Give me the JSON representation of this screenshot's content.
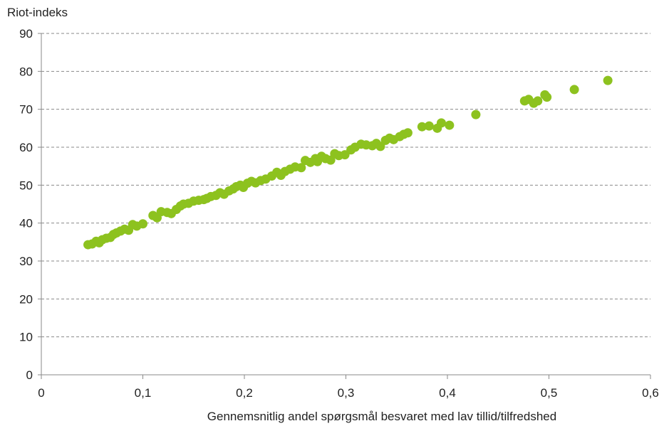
{
  "chart_data": {
    "type": "scatter",
    "ylabel": "Riot-indeks",
    "xlabel": "Gennemsnitlig andel spørgsmål besvaret med lav tillid/tilfredshed",
    "xlim": [
      0,
      0.6
    ],
    "ylim": [
      0,
      90
    ],
    "x_ticks": [
      "0",
      "0,1",
      "0,2",
      "0,3",
      "0,4",
      "0,5",
      "0,6"
    ],
    "y_ticks": [
      "0",
      "10",
      "20",
      "30",
      "40",
      "50",
      "60",
      "70",
      "80",
      "90"
    ],
    "grid": "horizontal-dashed",
    "point_color": "#8dc21f",
    "series": [
      {
        "points": [
          [
            0.046,
            34.3
          ],
          [
            0.05,
            34.5
          ],
          [
            0.054,
            35.2
          ],
          [
            0.057,
            34.8
          ],
          [
            0.06,
            35.6
          ],
          [
            0.064,
            36.0
          ],
          [
            0.068,
            36.2
          ],
          [
            0.071,
            37.0
          ],
          [
            0.074,
            37.4
          ],
          [
            0.078,
            37.9
          ],
          [
            0.082,
            38.4
          ],
          [
            0.086,
            38.1
          ],
          [
            0.09,
            39.6
          ],
          [
            0.094,
            39.2
          ],
          [
            0.1,
            39.8
          ],
          [
            0.11,
            42.0
          ],
          [
            0.114,
            41.4
          ],
          [
            0.118,
            43.0
          ],
          [
            0.124,
            42.8
          ],
          [
            0.128,
            42.5
          ],
          [
            0.133,
            43.6
          ],
          [
            0.137,
            44.5
          ],
          [
            0.14,
            45.0
          ],
          [
            0.145,
            45.2
          ],
          [
            0.15,
            45.8
          ],
          [
            0.155,
            46.0
          ],
          [
            0.16,
            46.2
          ],
          [
            0.163,
            46.5
          ],
          [
            0.167,
            47.0
          ],
          [
            0.172,
            47.3
          ],
          [
            0.176,
            48.0
          ],
          [
            0.18,
            47.6
          ],
          [
            0.185,
            48.5
          ],
          [
            0.189,
            49.0
          ],
          [
            0.192,
            49.6
          ],
          [
            0.196,
            50.0
          ],
          [
            0.199,
            49.4
          ],
          [
            0.203,
            50.5
          ],
          [
            0.207,
            51.0
          ],
          [
            0.211,
            50.6
          ],
          [
            0.216,
            51.2
          ],
          [
            0.221,
            51.6
          ],
          [
            0.227,
            52.4
          ],
          [
            0.232,
            53.4
          ],
          [
            0.236,
            52.6
          ],
          [
            0.24,
            53.6
          ],
          [
            0.245,
            54.2
          ],
          [
            0.25,
            54.8
          ],
          [
            0.256,
            54.6
          ],
          [
            0.26,
            56.5
          ],
          [
            0.265,
            56.0
          ],
          [
            0.27,
            57.0
          ],
          [
            0.272,
            56.2
          ],
          [
            0.276,
            57.6
          ],
          [
            0.28,
            57.0
          ],
          [
            0.285,
            56.6
          ],
          [
            0.289,
            58.3
          ],
          [
            0.293,
            57.8
          ],
          [
            0.299,
            58.0
          ],
          [
            0.305,
            59.3
          ],
          [
            0.309,
            60.0
          ],
          [
            0.315,
            60.8
          ],
          [
            0.32,
            60.6
          ],
          [
            0.326,
            60.4
          ],
          [
            0.33,
            61.0
          ],
          [
            0.334,
            60.2
          ],
          [
            0.339,
            61.8
          ],
          [
            0.343,
            62.4
          ],
          [
            0.347,
            62.0
          ],
          [
            0.353,
            62.8
          ],
          [
            0.357,
            63.4
          ],
          [
            0.361,
            63.8
          ],
          [
            0.375,
            65.4
          ],
          [
            0.382,
            65.6
          ],
          [
            0.39,
            65.0
          ],
          [
            0.394,
            66.4
          ],
          [
            0.402,
            65.8
          ],
          [
            0.428,
            68.6
          ],
          [
            0.476,
            72.2
          ],
          [
            0.48,
            72.6
          ],
          [
            0.485,
            71.6
          ],
          [
            0.489,
            72.2
          ],
          [
            0.496,
            73.8
          ],
          [
            0.498,
            73.2
          ],
          [
            0.525,
            75.2
          ],
          [
            0.558,
            77.6
          ]
        ]
      }
    ]
  }
}
